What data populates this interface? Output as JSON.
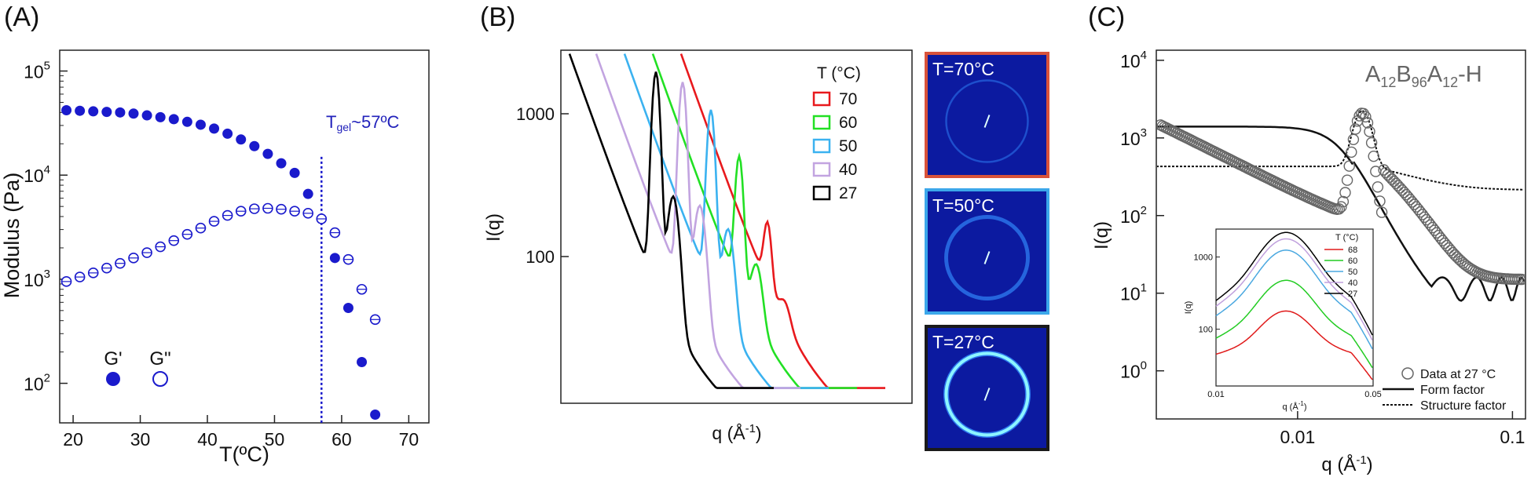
{
  "panels": {
    "A": {
      "label": "(A)",
      "chart_data": {
        "type": "scatter",
        "xlabel": "T(ºC)",
        "ylabel": "Modulus (Pa)",
        "xlim": [
          18,
          73
        ],
        "ylim_log10": [
          1.62,
          5.2
        ],
        "y_scale": "log",
        "x_ticks": [
          "20",
          "30",
          "40",
          "50",
          "60",
          "70"
        ],
        "y_ticks": [
          {
            "base": "10",
            "exp": "2"
          },
          {
            "base": "10",
            "exp": "3"
          },
          {
            "base": "10",
            "exp": "4"
          },
          {
            "base": "10",
            "exp": "5"
          }
        ],
        "gel_line_x": 57,
        "gel_label_main": "T",
        "gel_label_sub": "gel",
        "gel_label_rest": "~57ºC",
        "series": [
          {
            "name": "G'",
            "filled": true,
            "points": [
              [
                19,
                42000
              ],
              [
                21,
                41500
              ],
              [
                23,
                41000
              ],
              [
                25,
                40500
              ],
              [
                27,
                40000
              ],
              [
                29,
                39000
              ],
              [
                31,
                37500
              ],
              [
                33,
                36000
              ],
              [
                35,
                34500
              ],
              [
                37,
                32500
              ],
              [
                39,
                30500
              ],
              [
                41,
                28000
              ],
              [
                43,
                25000
              ],
              [
                45,
                22000
              ],
              [
                47,
                19000
              ],
              [
                49,
                16000
              ],
              [
                51,
                13000
              ],
              [
                53,
                10500
              ],
              [
                55,
                6600
              ],
              [
                57,
                3800
              ],
              [
                59,
                1600
              ],
              [
                61,
                530
              ],
              [
                63,
                160
              ],
              [
                65,
                50
              ]
            ]
          },
          {
            "name": "G\"",
            "filled": false,
            "points": [
              [
                19,
                950
              ],
              [
                21,
                1050
              ],
              [
                23,
                1150
              ],
              [
                25,
                1280
              ],
              [
                27,
                1420
              ],
              [
                29,
                1600
              ],
              [
                31,
                1800
              ],
              [
                33,
                2050
              ],
              [
                35,
                2350
              ],
              [
                37,
                2700
              ],
              [
                39,
                3100
              ],
              [
                41,
                3600
              ],
              [
                43,
                4100
              ],
              [
                45,
                4500
              ],
              [
                47,
                4750
              ],
              [
                49,
                4800
              ],
              [
                51,
                4700
              ],
              [
                53,
                4500
              ],
              [
                55,
                4300
              ],
              [
                57,
                3800
              ],
              [
                59,
                2800
              ],
              [
                61,
                1550
              ],
              [
                63,
                800
              ],
              [
                65,
                410
              ]
            ]
          }
        ],
        "legend": [
          {
            "name": "G'",
            "filled": true
          },
          {
            "name": "G\"",
            "filled": false
          }
        ],
        "legend_position": "bottom-left"
      }
    },
    "B": {
      "label": "(B)",
      "chart_data": {
        "type": "line",
        "xlabel": "q (Å",
        "xlabel_sup": "-1",
        "xlabel_close": ")",
        "ylabel": "I(q)",
        "y_scale": "log",
        "y_ticks": [
          "1000",
          "100"
        ],
        "legend_title": "T (°C)",
        "legend_position": "top-right",
        "series": [
          {
            "name": "70",
            "color": "#e8191d",
            "offset": 142,
            "peak": 110,
            "start": 2000
          },
          {
            "name": "60",
            "color": "#22e024",
            "offset": 106,
            "peak": 440,
            "start": 2000
          },
          {
            "name": "50",
            "color": "#3bb2f0",
            "offset": 70,
            "peak": 1000,
            "start": 2000
          },
          {
            "name": "40",
            "color": "#c2a4e0",
            "offset": 34,
            "peak": 1600,
            "start": 2000
          },
          {
            "name": "27",
            "color": "#000000",
            "offset": 0,
            "peak": 1900,
            "start": 2000
          }
        ]
      },
      "images": [
        {
          "label": "T=70°C",
          "border": "#d9533a",
          "ring": 0.35
        },
        {
          "label": "T=50°C",
          "border": "#3ba7ea",
          "ring": 0.7
        },
        {
          "label": "T=27°C",
          "border": "#1a1a1a",
          "ring": 1.0
        }
      ]
    },
    "C": {
      "label": "(C)",
      "title_A": "A",
      "title_s1": "12",
      "title_B": "B",
      "title_s2": "96",
      "title_A2": "A",
      "title_s3": "12",
      "title_rest": "-H",
      "chart_data": {
        "type": "line",
        "xlabel": "q (Å",
        "xlabel_sup": "-1",
        "xlabel_close": ")",
        "ylabel": "I(q)",
        "x_scale": "log",
        "y_scale": "log",
        "x_ticks": [
          "0.01",
          "0.1"
        ],
        "y_ticks": [
          {
            "base": "10",
            "exp": "0"
          },
          {
            "base": "10",
            "exp": "1"
          },
          {
            "base": "10",
            "exp": "2"
          },
          {
            "base": "10",
            "exp": "3"
          },
          {
            "base": "10",
            "exp": "4"
          }
        ],
        "legend": [
          "Data at 27 °C",
          "Form factor",
          "Structure factor"
        ],
        "legend_position": "bottom-right",
        "inset": {
          "xlabel": "q (Å",
          "xlabel_sup": "-1",
          "xlabel_close": ")",
          "ylabel": "I(q)",
          "x_ticks": [
            "0.01",
            "0.05"
          ],
          "y_ticks": [
            "1000",
            "100"
          ],
          "legend_title": "T (°C)",
          "series": [
            {
              "name": "68",
              "color": "#e01a1a",
              "peak": 110
            },
            {
              "name": "60",
              "color": "#22cc22",
              "peak": 330
            },
            {
              "name": "50",
              "color": "#4aa8e0",
              "peak": 900
            },
            {
              "name": "40",
              "color": "#c0a0dd",
              "peak": 1300
            },
            {
              "name": "27",
              "color": "#000000",
              "peak": 1600
            }
          ]
        }
      }
    }
  }
}
